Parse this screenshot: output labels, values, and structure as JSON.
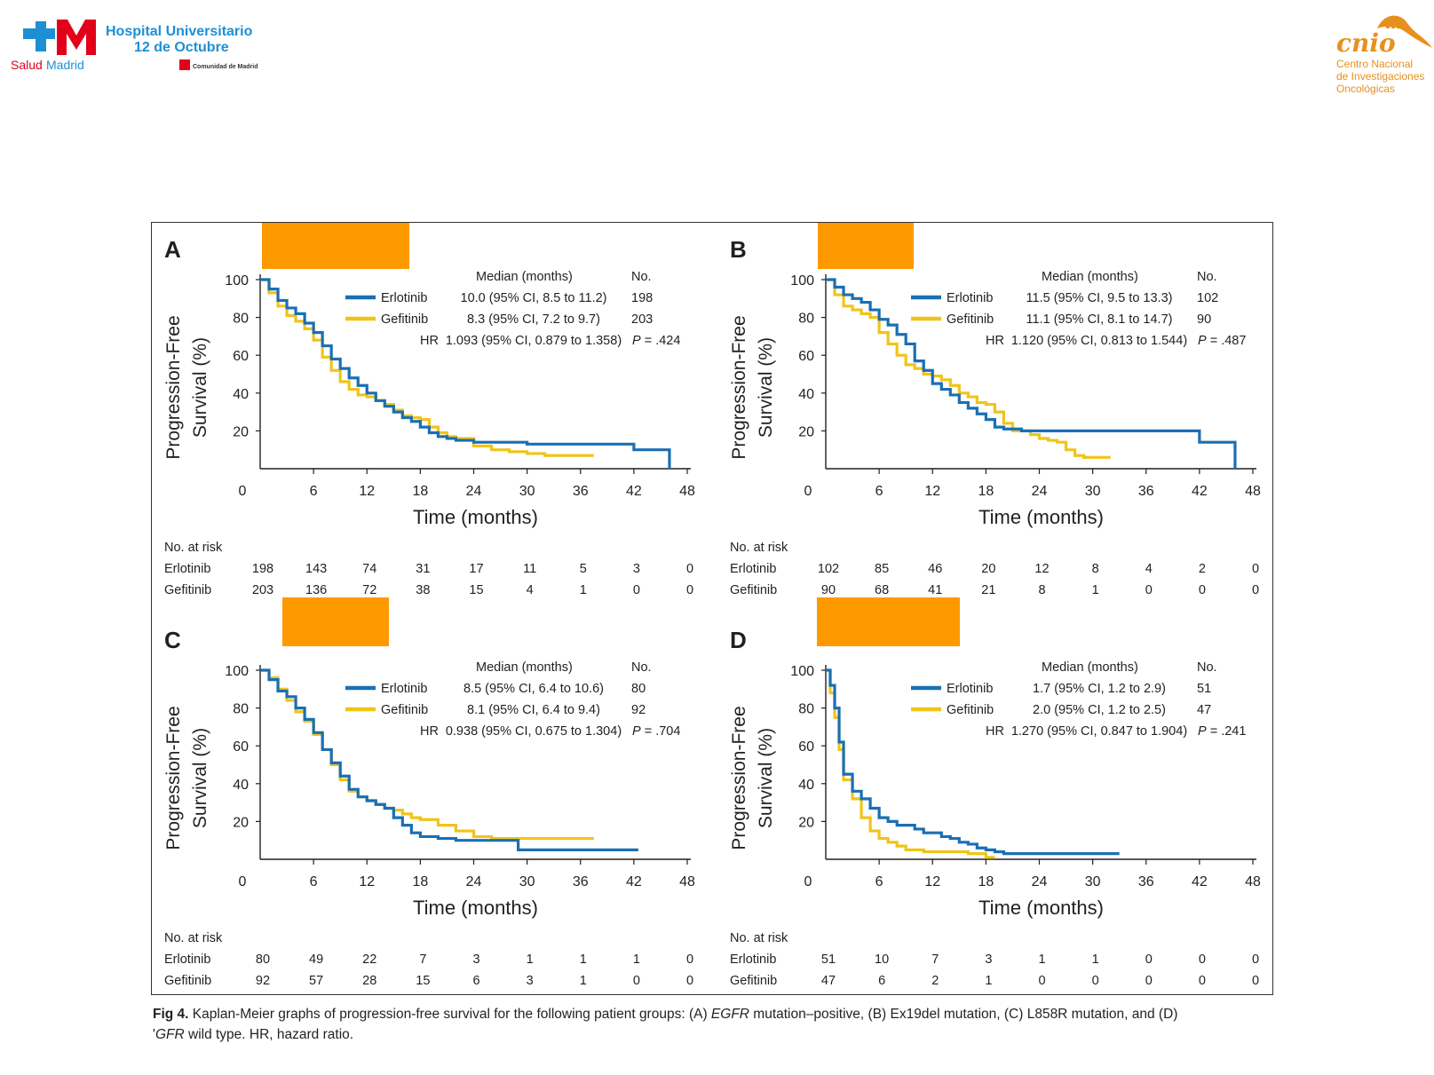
{
  "header": {
    "hospital_line1": "Hospital Universitario",
    "hospital_line2": "12 de Octubre",
    "salud_a": "Salud",
    "salud_b": "Madrid",
    "comunidad": "Comunidad de Madrid",
    "cnio_logo": "cnio",
    "cnio_line1": "Centro Nacional",
    "cnio_line2": "de Investigaciones",
    "cnio_line3": "Oncológicas"
  },
  "colors": {
    "erlotinib": "#1a6fb4",
    "gefitinib": "#f0c419",
    "redaction": "#ff9900",
    "salud_red": "#e2001a",
    "hospital_blue": "#1e8fd4",
    "cnio_orange": "#e8901c"
  },
  "caption": {
    "figno": "Fig 4.",
    "t1": "Kaplan-Meier graphs of progression-free survival for the following patient groups: (A) ",
    "i1": "EGFR",
    "t2": " mutation–positive, (B) Ex19del mutation, (C) L858R mutation, and (D)",
    "t3": "'",
    "i2": "GFR",
    "t4": " wild type. HR, hazard ratio."
  },
  "chart_data": [
    {
      "type": "line",
      "panel": "A",
      "xlabel": "Time (months)",
      "ylabel_line1": "Progression-Free",
      "ylabel_line2": "Survival (%)",
      "xlim": [
        0,
        48
      ],
      "ylim": [
        0,
        100
      ],
      "xticks": [
        "0",
        "6",
        "12",
        "18",
        "24",
        "30",
        "36",
        "42",
        "48"
      ],
      "yticks": [
        "20",
        "40",
        "60",
        "80",
        "100"
      ],
      "legend": {
        "header_median": "Median (months)",
        "header_no": "No.",
        "rows": [
          {
            "name": "Erlotinib",
            "median": "10.0 (95% CI, 8.5 to 11.2)",
            "no": "198"
          },
          {
            "name": "Gefitinib",
            "median": "8.3 (95% CI, 7.2 to 9.7)",
            "no": "203"
          }
        ],
        "hr_label": "HR",
        "hr": "1.093 (95% CI, 0.879 to 1.358)",
        "p": "P = .424"
      },
      "risk": {
        "title": "No. at risk",
        "rows": [
          {
            "name": "Erlotinib",
            "values": [
              "198",
              "143",
              "74",
              "31",
              "17",
              "11",
              "5",
              "3",
              "0"
            ]
          },
          {
            "name": "Gefitinib",
            "values": [
              "203",
              "136",
              "72",
              "38",
              "15",
              "4",
              "1",
              "0",
              "0"
            ]
          }
        ]
      },
      "series": [
        {
          "name": "Erlotinib",
          "x": [
            0,
            1,
            2,
            3,
            4,
            5,
            6,
            7,
            8,
            9,
            10,
            11,
            12,
            13,
            14,
            15,
            16,
            17,
            18,
            19,
            20,
            21,
            22,
            23,
            24,
            26,
            28,
            30,
            32,
            34,
            36,
            38,
            40,
            42,
            44,
            46,
            46
          ],
          "y": [
            100,
            95,
            89,
            85,
            82,
            77,
            72,
            65,
            58,
            53,
            48,
            44,
            40,
            36,
            33,
            30,
            27,
            25,
            22,
            19,
            17,
            16,
            15,
            15,
            14,
            14,
            14,
            13,
            13,
            13,
            13,
            13,
            13,
            10,
            10,
            10,
            0
          ]
        },
        {
          "name": "Gefitinib",
          "x": [
            0,
            1,
            2,
            3,
            4,
            5,
            6,
            7,
            8,
            9,
            10,
            11,
            12,
            13,
            14,
            15,
            16,
            17,
            18,
            19,
            20,
            21,
            22,
            24,
            26,
            28,
            30,
            32,
            34,
            36,
            37.5
          ],
          "y": [
            100,
            93,
            86,
            81,
            78,
            74,
            68,
            59,
            52,
            46,
            42,
            39,
            38,
            36,
            34,
            31,
            28,
            27,
            26,
            22,
            19,
            17,
            16,
            12,
            10,
            9,
            8,
            7,
            7,
            7,
            7
          ]
        }
      ]
    },
    {
      "type": "line",
      "panel": "B",
      "xlabel": "Time (months)",
      "ylabel_line1": "Progression-Free",
      "ylabel_line2": "Survival (%)",
      "xlim": [
        0,
        48
      ],
      "ylim": [
        0,
        100
      ],
      "xticks": [
        "0",
        "6",
        "12",
        "18",
        "24",
        "30",
        "36",
        "42",
        "48"
      ],
      "yticks": [
        "20",
        "40",
        "60",
        "80",
        "100"
      ],
      "legend": {
        "header_median": "Median (months)",
        "header_no": "No.",
        "rows": [
          {
            "name": "Erlotinib",
            "median": "11.5 (95% CI, 9.5 to 13.3)",
            "no": "102"
          },
          {
            "name": "Gefitinib",
            "median": "11.1 (95% CI, 8.1 to 14.7)",
            "no": "90"
          }
        ],
        "hr_label": "HR",
        "hr": "1.120 (95% CI, 0.813 to 1.544)",
        "p": "P = .487"
      },
      "risk": {
        "title": "No. at risk",
        "rows": [
          {
            "name": "Erlotinib",
            "values": [
              "102",
              "85",
              "46",
              "20",
              "12",
              "8",
              "4",
              "2",
              "0"
            ]
          },
          {
            "name": "Gefitinib",
            "values": [
              "90",
              "68",
              "41",
              "21",
              "8",
              "1",
              "0",
              "0",
              "0"
            ]
          }
        ]
      },
      "series": [
        {
          "name": "Erlotinib",
          "x": [
            0,
            1,
            2,
            3,
            4,
            5,
            6,
            7,
            8,
            9,
            10,
            11,
            12,
            13,
            14,
            15,
            16,
            17,
            18,
            19,
            20,
            22,
            24,
            26,
            28,
            30,
            32,
            34,
            36,
            38,
            40,
            42,
            44,
            46,
            46
          ],
          "y": [
            100,
            96,
            92,
            90,
            88,
            84,
            79,
            76,
            71,
            66,
            57,
            52,
            45,
            42,
            39,
            35,
            32,
            29,
            26,
            22,
            21,
            20,
            20,
            20,
            20,
            20,
            20,
            20,
            20,
            20,
            20,
            14,
            14,
            12,
            0
          ]
        },
        {
          "name": "Gefitinib",
          "x": [
            0,
            1,
            2,
            3,
            4,
            5,
            6,
            7,
            8,
            9,
            10,
            11,
            12,
            13,
            14,
            15,
            16,
            17,
            18,
            19,
            20,
            21,
            22,
            23,
            24,
            25,
            26,
            27,
            28,
            29,
            30,
            31,
            32
          ],
          "y": [
            100,
            92,
            86,
            84,
            82,
            80,
            72,
            66,
            60,
            55,
            53,
            50,
            49,
            47,
            44,
            40,
            38,
            35,
            34,
            30,
            24,
            20,
            20,
            18,
            16,
            15,
            14,
            10,
            7,
            6,
            6,
            6,
            6
          ]
        }
      ]
    },
    {
      "type": "line",
      "panel": "C",
      "xlabel": "Time (months)",
      "ylabel_line1": "Progression-Free",
      "ylabel_line2": "Survival (%)",
      "xlim": [
        0,
        48
      ],
      "ylim": [
        0,
        100
      ],
      "xticks": [
        "0",
        "6",
        "12",
        "18",
        "24",
        "30",
        "36",
        "42",
        "48"
      ],
      "yticks": [
        "20",
        "40",
        "60",
        "80",
        "100"
      ],
      "legend": {
        "header_median": "Median (months)",
        "header_no": "No.",
        "rows": [
          {
            "name": "Erlotinib",
            "median": "8.5 (95% CI, 6.4 to 10.6)",
            "no": "80"
          },
          {
            "name": "Gefitinib",
            "median": "8.1 (95% CI, 6.4 to 9.4)",
            "no": "92"
          }
        ],
        "hr_label": "HR",
        "hr": "0.938 (95% CI, 0.675 to 1.304)",
        "p": "P = .704"
      },
      "risk": {
        "title": "No. at risk",
        "rows": [
          {
            "name": "Erlotinib",
            "values": [
              "80",
              "49",
              "22",
              "7",
              "3",
              "1",
              "1",
              "1",
              "0"
            ]
          },
          {
            "name": "Gefitinib",
            "values": [
              "92",
              "57",
              "28",
              "15",
              "6",
              "3",
              "1",
              "0",
              "0"
            ]
          }
        ]
      },
      "series": [
        {
          "name": "Erlotinib",
          "x": [
            0,
            1,
            2,
            3,
            4,
            5,
            6,
            7,
            8,
            9,
            10,
            11,
            12,
            13,
            14,
            15,
            16,
            17,
            18,
            20,
            22,
            24,
            26,
            28,
            29,
            30,
            32,
            34,
            36,
            38,
            40,
            42.5
          ],
          "y": [
            100,
            95,
            89,
            86,
            80,
            74,
            67,
            58,
            51,
            44,
            37,
            33,
            31,
            29,
            27,
            22,
            18,
            14,
            12,
            11,
            10,
            10,
            10,
            10,
            5,
            5,
            5,
            5,
            5,
            5,
            5,
            5
          ]
        },
        {
          "name": "Gefitinib",
          "x": [
            0,
            1,
            2,
            3,
            4,
            5,
            6,
            7,
            8,
            9,
            10,
            11,
            12,
            13,
            14,
            15,
            16,
            17,
            18,
            20,
            22,
            24,
            26,
            28,
            30,
            32,
            34,
            36,
            37.5
          ],
          "y": [
            100,
            96,
            90,
            84,
            78,
            73,
            66,
            58,
            50,
            42,
            36,
            33,
            31,
            29,
            27,
            26,
            24,
            22,
            21,
            18,
            15,
            12,
            11,
            11,
            11,
            11,
            11,
            11,
            11
          ]
        }
      ]
    },
    {
      "type": "line",
      "panel": "D",
      "xlabel": "Time (months)",
      "ylabel_line1": "Progression-Free",
      "ylabel_line2": "Survival (%)",
      "xlim": [
        0,
        48
      ],
      "ylim": [
        0,
        100
      ],
      "xticks": [
        "0",
        "6",
        "12",
        "18",
        "24",
        "30",
        "36",
        "42",
        "48"
      ],
      "yticks": [
        "20",
        "40",
        "60",
        "80",
        "100"
      ],
      "legend": {
        "header_median": "Median (months)",
        "header_no": "No.",
        "rows": [
          {
            "name": "Erlotinib",
            "median": "1.7 (95% CI, 1.2 to 2.9)",
            "no": "51"
          },
          {
            "name": "Gefitinib",
            "median": "2.0 (95% CI, 1.2 to 2.5)",
            "no": "47"
          }
        ],
        "hr_label": "HR",
        "hr": "1.270 (95% CI, 0.847 to 1.904)",
        "p": "P = .241"
      },
      "risk": {
        "title": "No. at risk",
        "rows": [
          {
            "name": "Erlotinib",
            "values": [
              "51",
              "10",
              "7",
              "3",
              "1",
              "1",
              "0",
              "0",
              "0"
            ]
          },
          {
            "name": "Gefitinib",
            "values": [
              "47",
              "6",
              "2",
              "1",
              "0",
              "0",
              "0",
              "0",
              "0"
            ]
          }
        ]
      },
      "series": [
        {
          "name": "Erlotinib",
          "x": [
            0,
            0.5,
            1,
            1.5,
            2,
            3,
            4,
            5,
            6,
            7,
            8,
            9,
            10,
            11,
            12,
            13,
            14,
            15,
            16,
            17,
            18,
            19,
            20,
            24,
            28,
            30,
            33
          ],
          "y": [
            100,
            92,
            80,
            62,
            45,
            36,
            32,
            27,
            22,
            20,
            18,
            18,
            16,
            14,
            14,
            12,
            11,
            9,
            8,
            6,
            5,
            4,
            3,
            3,
            3,
            3,
            3
          ]
        },
        {
          "name": "Gefitinib",
          "x": [
            0,
            0.5,
            1,
            1.5,
            2,
            3,
            4,
            5,
            6,
            7,
            8,
            9,
            10,
            11,
            12,
            13,
            14,
            15,
            16,
            17,
            18,
            19
          ],
          "y": [
            100,
            88,
            75,
            58,
            42,
            32,
            22,
            15,
            11,
            9,
            7,
            5,
            5,
            4,
            4,
            4,
            4,
            4,
            3,
            3,
            1,
            1
          ]
        }
      ]
    }
  ]
}
